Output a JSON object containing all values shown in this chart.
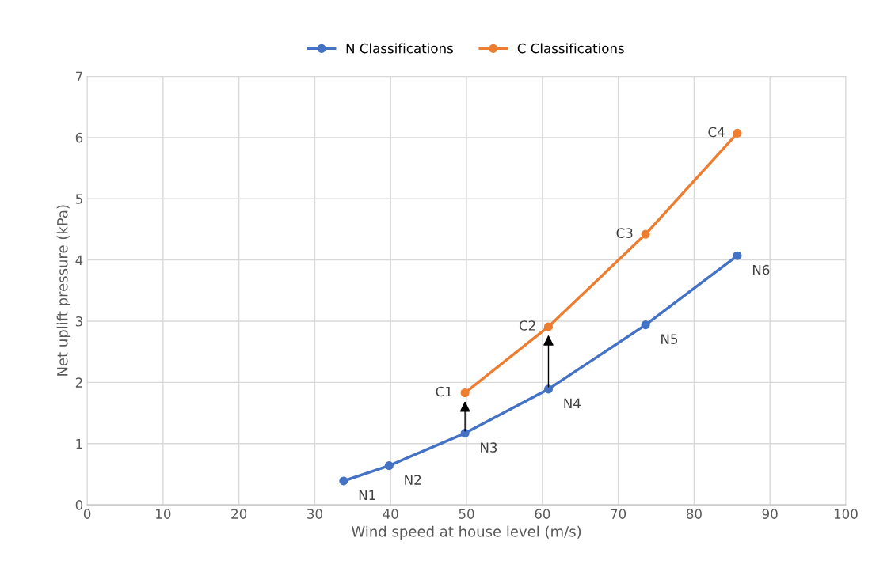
{
  "chart_data": {
    "type": "line",
    "xlabel": "Wind speed at house level (m/s)",
    "ylabel": "Net uplift pressure (kPa)",
    "series": [
      {
        "name": "N Classifications",
        "color": "#4472c4",
        "x": [
          33.8,
          39.8,
          49.8,
          60.8,
          73.6,
          85.7
        ],
        "values": [
          0.39,
          0.64,
          1.17,
          1.89,
          2.94,
          4.07
        ]
      },
      {
        "name": "C Classifications",
        "color": "#ed7d31",
        "x": [
          49.8,
          60.8,
          73.6,
          85.7
        ],
        "values": [
          1.83,
          2.91,
          4.42,
          6.07
        ]
      }
    ],
    "annotations": [
      {
        "text": "N1",
        "x": 33.8,
        "y": 0.39
      },
      {
        "text": "N2",
        "x": 39.8,
        "y": 0.64
      },
      {
        "text": "N3",
        "x": 49.8,
        "y": 1.17
      },
      {
        "text": "N4",
        "x": 60.8,
        "y": 1.89
      },
      {
        "text": "N5",
        "x": 73.6,
        "y": 2.94
      },
      {
        "text": "N6",
        "x": 85.7,
        "y": 4.07
      },
      {
        "text": "C1",
        "x": 49.8,
        "y": 1.83
      },
      {
        "text": "C2",
        "x": 60.8,
        "y": 2.91
      },
      {
        "text": "C3",
        "x": 73.6,
        "y": 4.42
      },
      {
        "text": "C4",
        "x": 85.7,
        "y": 6.07
      }
    ],
    "xlim": [
      0,
      100
    ],
    "xticks": [
      0,
      10,
      20,
      30,
      40,
      50,
      60,
      70,
      80,
      90,
      100
    ],
    "ylim": [
      0,
      7
    ],
    "yticks": [
      0,
      1,
      2,
      3,
      4,
      5,
      6,
      7
    ],
    "grid": true,
    "legend": "top",
    "marker": "circle",
    "line_style": "solid"
  }
}
